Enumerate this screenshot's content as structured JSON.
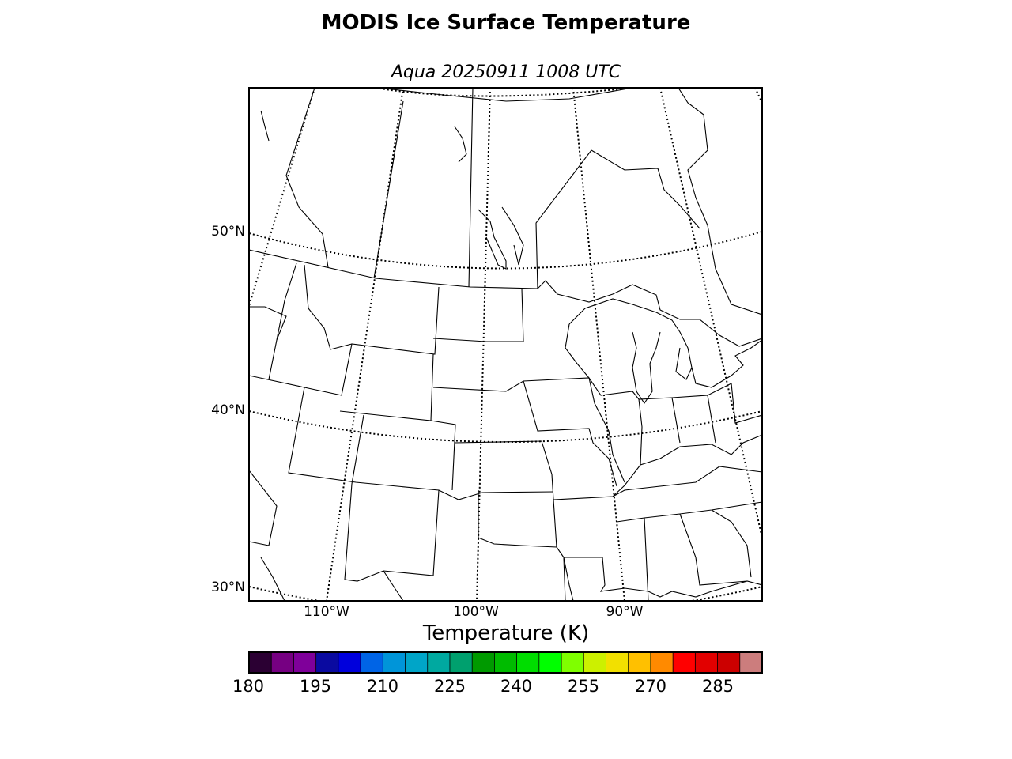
{
  "title": "MODIS Ice Surface Temperature",
  "subtitle": "Aqua 20250911 1008 UTC",
  "lat_labels": [
    "50°N",
    "40°N",
    "30°N"
  ],
  "lon_labels": [
    "110°W",
    "100°W",
    "90°W"
  ],
  "colorbar": {
    "title": "Temperature (K)",
    "tick_labels": [
      "180",
      "195",
      "210",
      "225",
      "240",
      "255",
      "270",
      "285"
    ],
    "colors": [
      "#2b0033",
      "#760082",
      "#7f009a",
      "#0a0aa0",
      "#0000dc",
      "#0064e6",
      "#0095d9",
      "#00a5c8",
      "#00a9a0",
      "#00a06e",
      "#009a00",
      "#00bb00",
      "#00dd00",
      "#00ff00",
      "#7fff00",
      "#ccf000",
      "#f2e000",
      "#ffc000",
      "#ff8a00",
      "#ff0000",
      "#e20000",
      "#cc0000",
      "#cc7d7d"
    ]
  }
}
